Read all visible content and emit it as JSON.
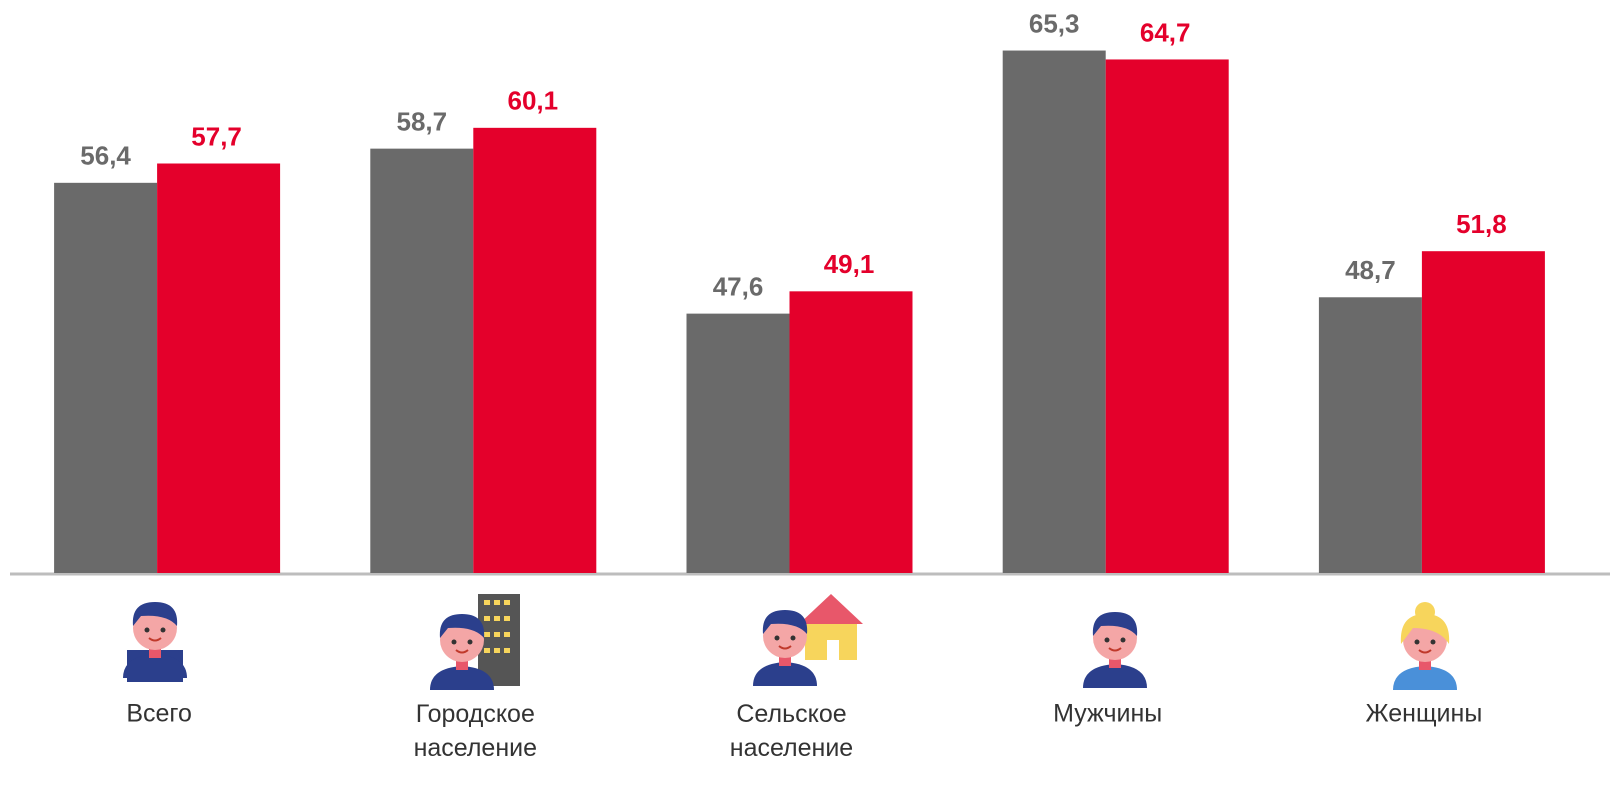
{
  "chart_data": {
    "type": "bar",
    "categories": [
      "Всего",
      "Городское население",
      "Сельское население",
      "Мужчины",
      "Женщины"
    ],
    "series": [
      {
        "color": "#6a6a6a",
        "values": [
          56.4,
          58.7,
          47.6,
          65.3,
          48.7
        ],
        "value_labels": [
          "56,4",
          "58,7",
          "47,6",
          "65,3",
          "48,7"
        ]
      },
      {
        "color": "#e4002b",
        "values": [
          57.7,
          60.1,
          49.1,
          64.7,
          51.8
        ],
        "value_labels": [
          "57,7",
          "60,1",
          "49,1",
          "64,7",
          "51,8"
        ]
      }
    ],
    "ylim": [
      30.15,
      68.7
    ]
  }
}
